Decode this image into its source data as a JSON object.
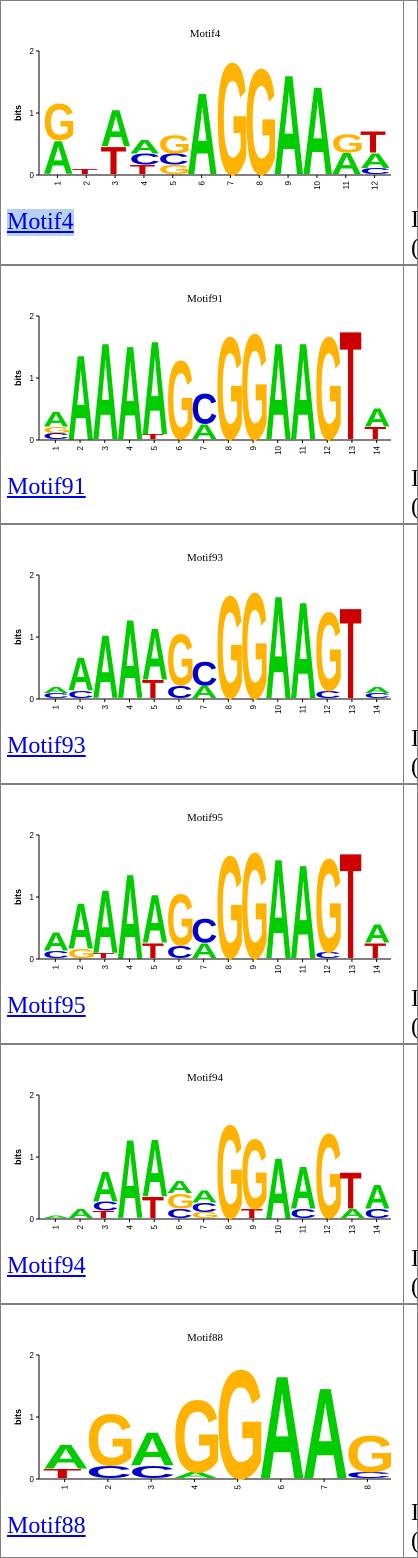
{
  "rows": [
    {
      "id": "motif4",
      "title": "Motif4",
      "link": "Motif4",
      "selected": true,
      "axis_label": "bits",
      "y_ticks": [
        "0",
        "1",
        "2"
      ],
      "positions": [
        "1",
        "2",
        "3",
        "4",
        "5",
        "6",
        "7",
        "8",
        "9",
        "10",
        "11",
        "12"
      ],
      "side_glyphs": [
        "I",
        "("
      ],
      "stacks": [
        [
          [
            "A",
            0.55
          ],
          [
            "G",
            0.6
          ]
        ],
        [
          [
            "T",
            0.08
          ]
        ],
        [
          [
            "T",
            0.45
          ],
          [
            "A",
            0.6
          ]
        ],
        [
          [
            "T",
            0.15
          ],
          [
            "C",
            0.18
          ],
          [
            "A",
            0.22
          ]
        ],
        [
          [
            "G",
            0.15
          ],
          [
            "C",
            0.18
          ],
          [
            "G",
            0.3
          ]
        ],
        [
          [
            "A",
            1.35
          ]
        ],
        [
          [
            "G",
            1.85
          ]
        ],
        [
          [
            "G",
            1.75
          ]
        ],
        [
          [
            "A",
            1.65
          ]
        ],
        [
          [
            "A",
            1.45
          ]
        ],
        [
          [
            "A",
            0.35
          ],
          [
            "G",
            0.3
          ]
        ],
        [
          [
            "C",
            0.1
          ],
          [
            "A",
            0.25
          ],
          [
            "T",
            0.35
          ]
        ]
      ]
    },
    {
      "id": "motif91",
      "title": "Motif91",
      "link": "Motif91",
      "selected": false,
      "axis_label": "bits",
      "y_ticks": [
        "0",
        "1",
        "2"
      ],
      "positions": [
        "1",
        "2",
        "3",
        "4",
        "5",
        "6",
        "7",
        "8",
        "9",
        "10",
        "11",
        "12",
        "13",
        "14"
      ],
      "side_glyphs": [
        "I",
        "("
      ],
      "stacks": [
        [
          [
            "C",
            0.1
          ],
          [
            "G",
            0.1
          ],
          [
            "A",
            0.25
          ]
        ],
        [
          [
            "A",
            1.4
          ]
        ],
        [
          [
            "A",
            1.6
          ]
        ],
        [
          [
            "A",
            1.55
          ]
        ],
        [
          [
            "T",
            0.08
          ],
          [
            "A",
            1.55
          ]
        ],
        [
          [
            "G",
            1.3
          ]
        ],
        [
          [
            "A",
            0.25
          ],
          [
            "C",
            0.5
          ]
        ],
        [
          [
            "G",
            1.7
          ]
        ],
        [
          [
            "G",
            1.75
          ]
        ],
        [
          [
            "A",
            1.6
          ]
        ],
        [
          [
            "A",
            1.6
          ]
        ],
        [
          [
            "G",
            1.7
          ]
        ],
        [
          [
            "T",
            1.8
          ]
        ],
        [
          [
            "T",
            0.2
          ],
          [
            "A",
            0.3
          ]
        ]
      ]
    },
    {
      "id": "motif93",
      "title": "Motif93",
      "link": "Motif93",
      "selected": false,
      "axis_label": "bits",
      "y_ticks": [
        "0",
        "1",
        "2"
      ],
      "positions": [
        "1",
        "2",
        "3",
        "4",
        "5",
        "6",
        "7",
        "8",
        "9",
        "10",
        "11",
        "12",
        "13",
        "14"
      ],
      "side_glyphs": [
        "I",
        "("
      ],
      "stacks": [
        [
          [
            "C",
            0.08
          ],
          [
            "A",
            0.1
          ]
        ],
        [
          [
            "C",
            0.12
          ],
          [
            "A",
            0.55
          ]
        ],
        [
          [
            "A",
            1.05
          ]
        ],
        [
          [
            "A",
            1.3
          ]
        ],
        [
          [
            "T",
            0.3
          ],
          [
            "A",
            0.85
          ]
        ],
        [
          [
            "C",
            0.2
          ],
          [
            "G",
            0.85
          ]
        ],
        [
          [
            "A",
            0.2
          ],
          [
            "C",
            0.4
          ]
        ],
        [
          [
            "G",
            1.7
          ]
        ],
        [
          [
            "G",
            1.75
          ]
        ],
        [
          [
            "A",
            1.7
          ]
        ],
        [
          [
            "A",
            1.6
          ]
        ],
        [
          [
            "C",
            0.12
          ],
          [
            "G",
            1.3
          ]
        ],
        [
          [
            "T",
            1.5
          ]
        ],
        [
          [
            "C",
            0.08
          ],
          [
            "A",
            0.1
          ]
        ]
      ]
    },
    {
      "id": "motif95",
      "title": "Motif95",
      "link": "Motif95",
      "selected": false,
      "axis_label": "bits",
      "y_ticks": [
        "0",
        "1",
        "2"
      ],
      "positions": [
        "1",
        "2",
        "3",
        "4",
        "5",
        "6",
        "7",
        "8",
        "9",
        "10",
        "11",
        "12",
        "13",
        "14"
      ],
      "side_glyphs": [
        "I",
        "("
      ],
      "stacks": [
        [
          [
            "C",
            0.12
          ],
          [
            "A",
            0.3
          ]
        ],
        [
          [
            "G",
            0.15
          ],
          [
            "A",
            0.75
          ]
        ],
        [
          [
            "T",
            0.08
          ],
          [
            "A",
            1.05
          ]
        ],
        [
          [
            "A",
            1.4
          ]
        ],
        [
          [
            "T",
            0.25
          ],
          [
            "A",
            0.8
          ]
        ],
        [
          [
            "C",
            0.2
          ],
          [
            "G",
            0.85
          ]
        ],
        [
          [
            "A",
            0.25
          ],
          [
            "C",
            0.4
          ]
        ],
        [
          [
            "G",
            1.7
          ]
        ],
        [
          [
            "G",
            1.75
          ]
        ],
        [
          [
            "A",
            1.65
          ]
        ],
        [
          [
            "A",
            1.55
          ]
        ],
        [
          [
            "C",
            0.1
          ],
          [
            "G",
            1.55
          ]
        ],
        [
          [
            "T",
            1.75
          ]
        ],
        [
          [
            "T",
            0.25
          ],
          [
            "A",
            0.3
          ]
        ]
      ]
    },
    {
      "id": "motif94",
      "title": "Motif94",
      "link": "Motif94",
      "selected": false,
      "axis_label": "bits",
      "y_ticks": [
        "0",
        "1",
        "2"
      ],
      "positions": [
        "1",
        "2",
        "3",
        "4",
        "5",
        "6",
        "7",
        "8",
        "9",
        "10",
        "11",
        "12",
        "13",
        "14"
      ],
      "side_glyphs": [
        "I",
        "("
      ],
      "stacks": [
        [
          [
            "A",
            0.04
          ]
        ],
        [
          [
            "A",
            0.15
          ]
        ],
        [
          [
            "T",
            0.12
          ],
          [
            "C",
            0.15
          ],
          [
            "A",
            0.5
          ]
        ],
        [
          [
            "A",
            1.3
          ]
        ],
        [
          [
            "T",
            0.35
          ],
          [
            "A",
            0.95
          ]
        ],
        [
          [
            "C",
            0.15
          ],
          [
            "G",
            0.25
          ],
          [
            "A",
            0.2
          ]
        ],
        [
          [
            "G",
            0.1
          ],
          [
            "C",
            0.15
          ],
          [
            "A",
            0.2
          ]
        ],
        [
          [
            "G",
            1.55
          ]
        ],
        [
          [
            "T",
            0.15
          ],
          [
            "G",
            1.15
          ]
        ],
        [
          [
            "A",
            1.0
          ]
        ],
        [
          [
            "C",
            0.15
          ],
          [
            "A",
            0.7
          ]
        ],
        [
          [
            "G",
            1.4
          ]
        ],
        [
          [
            "A",
            0.15
          ],
          [
            "T",
            0.6
          ]
        ],
        [
          [
            "C",
            0.15
          ],
          [
            "A",
            0.4
          ]
        ]
      ]
    },
    {
      "id": "motif88",
      "title": "Motif88",
      "link": "Motif88",
      "selected": false,
      "axis_label": "bits",
      "y_ticks": [
        "0",
        "1",
        "2"
      ],
      "positions": [
        "1",
        "2",
        "3",
        "4",
        "5",
        "6",
        "7",
        "8"
      ],
      "side_glyphs": [
        "I",
        "("
      ],
      "stacks": [
        [
          [
            "T",
            0.15
          ],
          [
            "A",
            0.4
          ]
        ],
        [
          [
            "C",
            0.2
          ],
          [
            "G",
            0.85
          ]
        ],
        [
          [
            "C",
            0.2
          ],
          [
            "A",
            0.55
          ]
        ],
        [
          [
            "A",
            0.1
          ],
          [
            "G",
            1.2
          ]
        ],
        [
          [
            "G",
            1.8
          ]
        ],
        [
          [
            "A",
            1.7
          ]
        ],
        [
          [
            "A",
            1.5
          ]
        ],
        [
          [
            "C",
            0.1
          ],
          [
            "G",
            0.6
          ]
        ]
      ]
    }
  ],
  "base_colors": {
    "A": "#00cc00",
    "C": "#0000cc",
    "G": "#ffb300",
    "T": "#cc0000"
  }
}
